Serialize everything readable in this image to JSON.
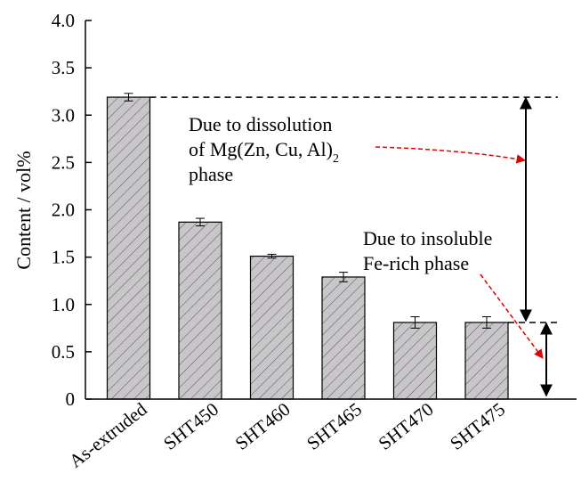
{
  "chart_data": {
    "type": "bar",
    "title": "",
    "xlabel": "",
    "ylabel": "Content / vol%",
    "ylim": [
      0,
      4.0
    ],
    "yticks": [
      "0",
      "0.5",
      "1.0",
      "1.5",
      "2.0",
      "2.5",
      "3.0",
      "3.5",
      "4.0"
    ],
    "categories": [
      "As-extruded",
      "SHT450",
      "SHT460",
      "SHT465",
      "SHT470",
      "SHT475"
    ],
    "values": [
      3.19,
      1.87,
      1.51,
      1.29,
      0.81,
      0.81
    ],
    "errors": [
      0.04,
      0.04,
      0.02,
      0.05,
      0.06,
      0.06
    ],
    "bar_fill": "#c8c6c9",
    "hatch": "diagonal",
    "reference_levels": [
      3.19,
      0.81
    ],
    "annotations": [
      {
        "id": "dissolution",
        "lines": [
          "Due to dissolution",
          "of Mg(Zn, Cu, Al)",
          "phase"
        ],
        "subscript": "2"
      },
      {
        "id": "insoluble",
        "lines": [
          "Due to insoluble",
          "Fe-rich phase"
        ]
      }
    ],
    "arrow_color": "#e00000"
  }
}
